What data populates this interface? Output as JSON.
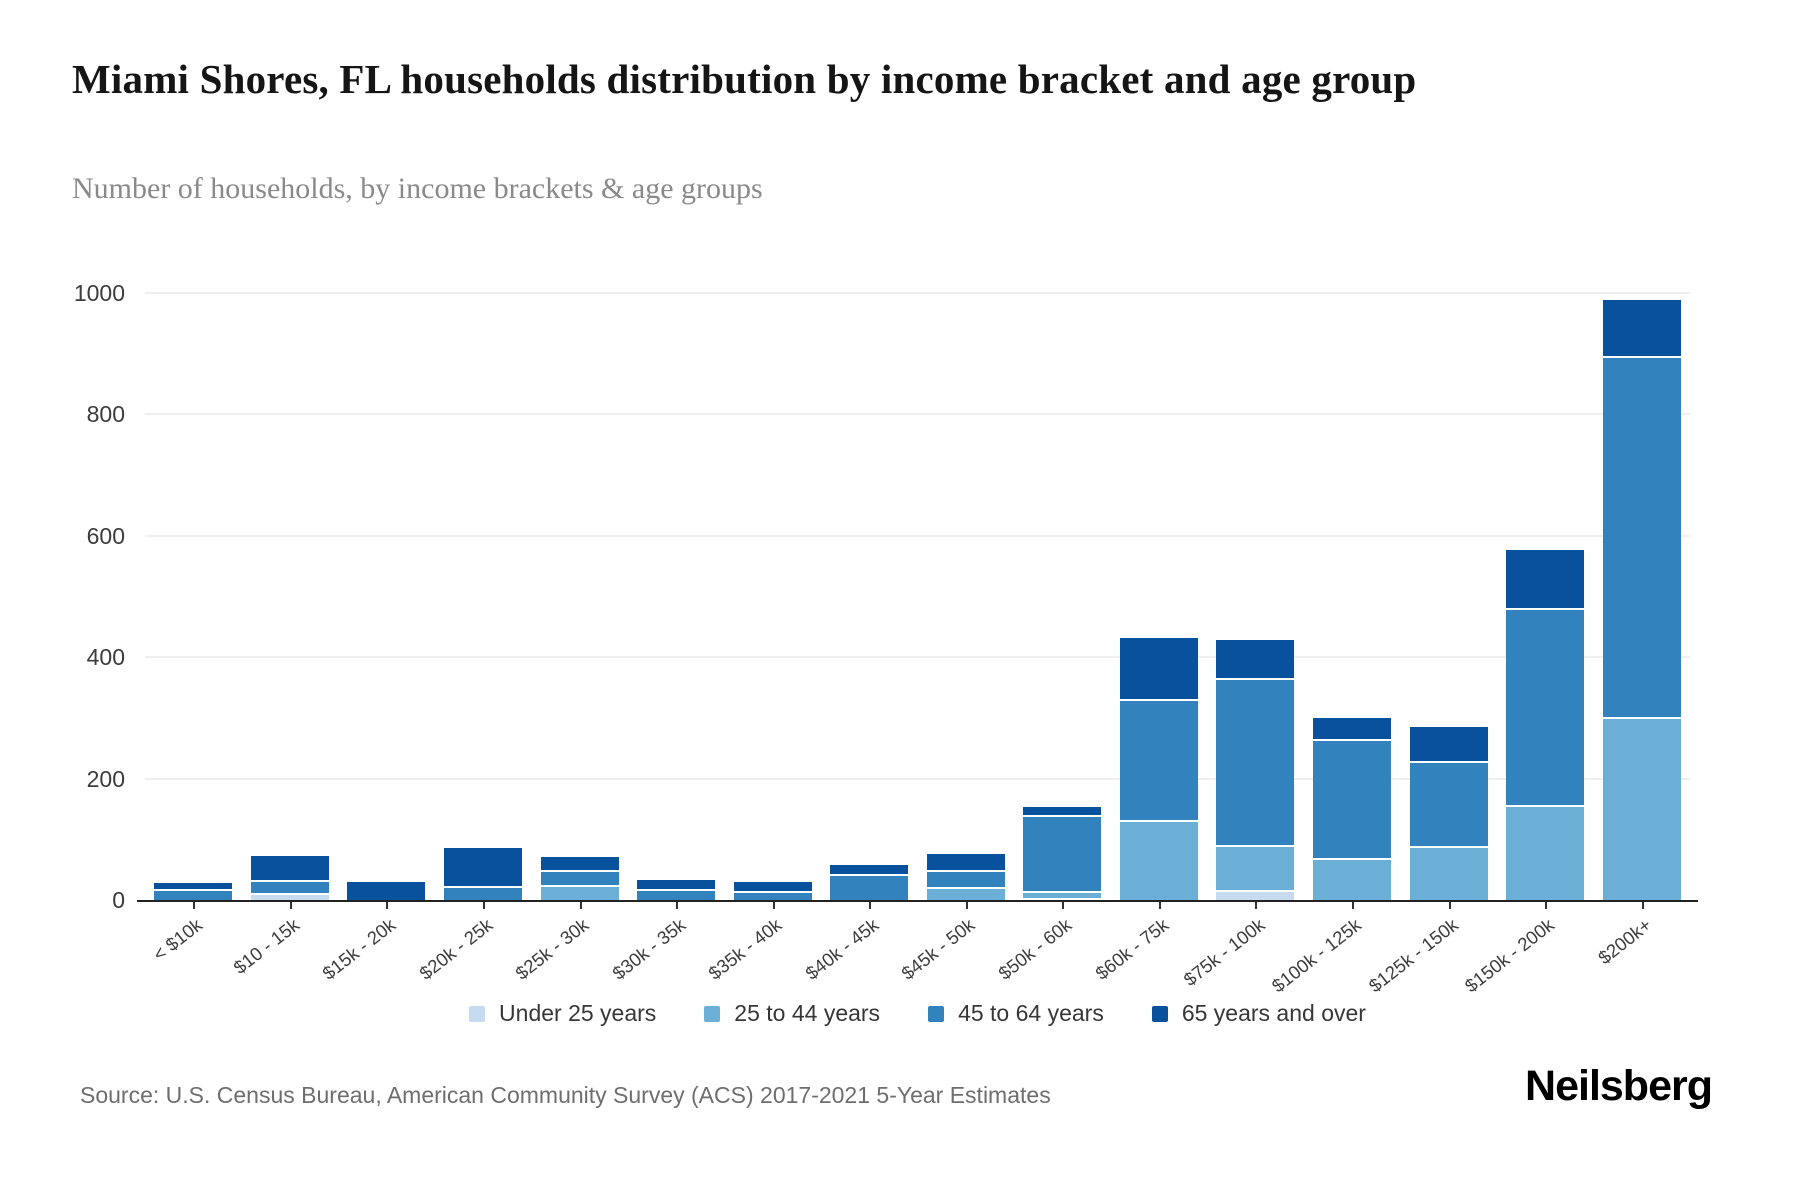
{
  "header": {
    "title": "Miami Shores, FL households distribution by income bracket and age group",
    "subtitle": "Number of households, by income brackets & age groups"
  },
  "chart_data": {
    "type": "bar",
    "stacked": true,
    "title": "Miami Shores, FL households distribution by income bracket and age group",
    "xlabel": "",
    "ylabel": "Number of households",
    "ylim": [
      0,
      1000
    ],
    "yticks": [
      0,
      200,
      400,
      600,
      800,
      1000
    ],
    "grid": true,
    "legend_position": "bottom",
    "categories": [
      "< $10k",
      "$10 - 15k",
      "$15k - 20k",
      "$20k - 25k",
      "$25k - 30k",
      "$30k - 35k",
      "$35k - 40k",
      "$40k - 45k",
      "$45k - 50k",
      "$50k - 60k",
      "$60k - 75k",
      "$75k - 100k",
      "$100k - 125k",
      "$125k - 150k",
      "$150k - 200k",
      "$200k+"
    ],
    "series": [
      {
        "name": "Under 25 years",
        "color": "#c6dbef",
        "values": [
          0,
          11,
          0,
          0,
          0,
          0,
          0,
          0,
          0,
          4,
          0,
          16,
          0,
          0,
          0,
          0
        ]
      },
      {
        "name": "25 to 44 years",
        "color": "#6baed6",
        "values": [
          0,
          0,
          0,
          0,
          25,
          0,
          0,
          0,
          22,
          11,
          131,
          75,
          70,
          89,
          156,
          302
        ]
      },
      {
        "name": "45 to 64 years",
        "color": "#3182bd",
        "values": [
          18,
          22,
          0,
          23,
          24,
          18,
          15,
          43,
          28,
          125,
          200,
          275,
          195,
          140,
          325,
          595
        ]
      },
      {
        "name": "65 years and over",
        "color": "#08519c",
        "values": [
          10,
          39,
          29,
          62,
          22,
          15,
          15,
          14,
          26,
          14,
          100,
          63,
          35,
          56,
          95,
          91
        ]
      }
    ]
  },
  "footer": {
    "source": "Source: U.S. Census Bureau, American Community Survey (ACS) 2017-2021 5-Year Estimates",
    "logo": "Neilsberg"
  }
}
